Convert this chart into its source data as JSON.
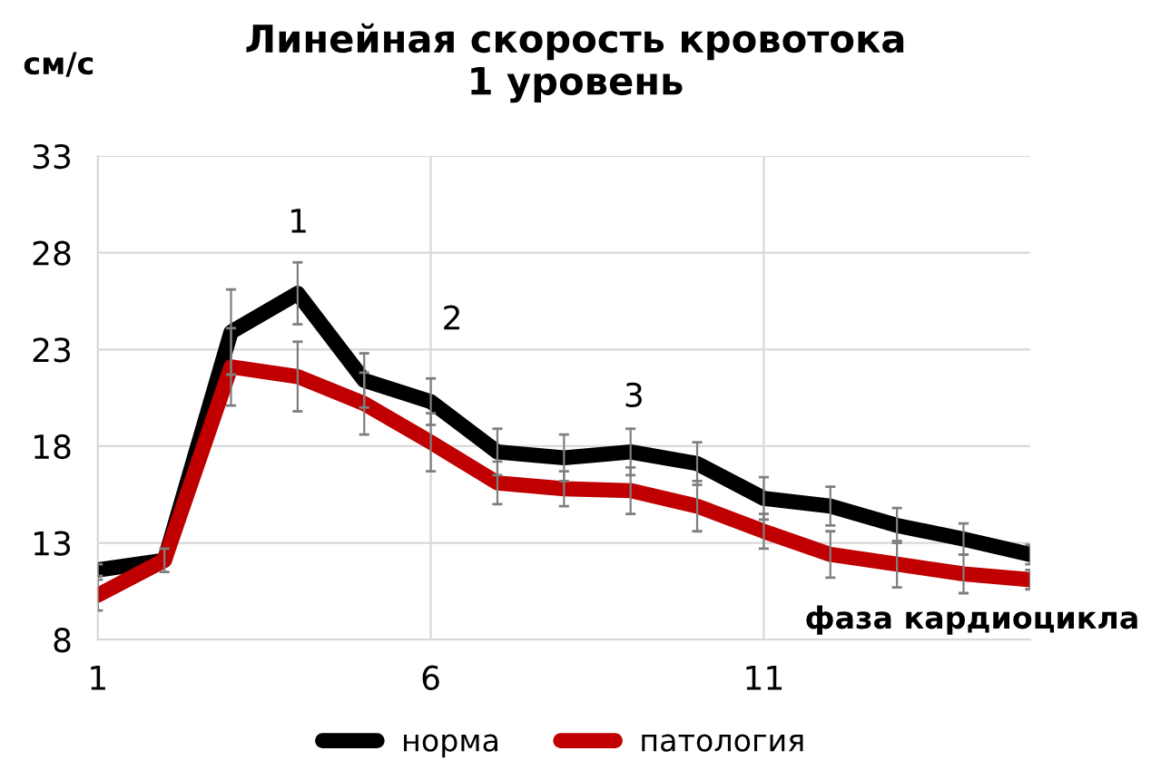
{
  "chart_data": {
    "type": "line",
    "title": "Линейная скорость кровотока\n1 уровень",
    "xlabel": "фаза кардиоцикла",
    "ylabel": "см/с",
    "x": [
      1,
      2,
      3,
      4,
      5,
      6,
      7,
      8,
      9,
      10,
      11,
      12,
      13,
      14,
      15
    ],
    "series": [
      {
        "name": "норма",
        "color": "#000000",
        "values": [
          11.6,
          12.1,
          23.9,
          25.9,
          21.4,
          20.3,
          17.7,
          17.4,
          17.7,
          17.1,
          15.3,
          14.9,
          13.9,
          13.2,
          12.4
        ],
        "errors": [
          0.3,
          0.6,
          2.2,
          1.6,
          1.4,
          1.2,
          1.2,
          1.2,
          1.2,
          1.1,
          1.1,
          1.0,
          0.9,
          0.8,
          0.5
        ]
      },
      {
        "name": "патология",
        "color": "#c00000",
        "values": [
          10.3,
          12.1,
          22.1,
          21.6,
          20.2,
          18.2,
          16.1,
          15.8,
          15.7,
          14.9,
          13.6,
          12.4,
          11.9,
          11.4,
          11.1
        ],
        "errors": [
          0.8,
          null,
          2.0,
          1.8,
          1.6,
          1.5,
          1.1,
          0.9,
          1.2,
          1.3,
          0.9,
          1.2,
          1.2,
          1.0,
          0.5
        ]
      }
    ],
    "annotations": [
      "1",
      "2",
      "3"
    ],
    "xlim": [
      1,
      15
    ],
    "xticks": [
      1,
      6,
      11
    ],
    "ylim": [
      8,
      33
    ],
    "yticks": [
      8,
      13,
      18,
      23,
      28,
      33
    ],
    "grid": true,
    "legend": "bottom",
    "marker": "none",
    "line_style": "solid"
  }
}
